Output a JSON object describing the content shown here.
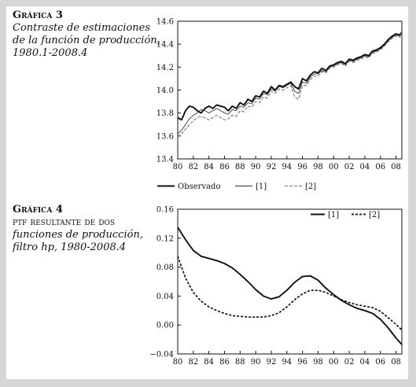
{
  "chart_data": [
    {
      "type": "line",
      "caption_number": "Gráfica 3",
      "title_lines": [
        "Contraste de estimaciones",
        "de la función de producción,",
        "1980.1-2008.4"
      ],
      "x_tick_labels": [
        "80",
        "82",
        "84",
        "86",
        "88",
        "90",
        "92",
        "94",
        "96",
        "98",
        "00",
        "02",
        "04",
        "06",
        "08"
      ],
      "x_range": [
        1980,
        2008.75
      ],
      "ylim": [
        13.4,
        14.6
      ],
      "y_ticks": [
        13.4,
        13.6,
        13.8,
        14.0,
        14.2,
        14.4,
        14.6
      ],
      "y_tick_labels": [
        "13.4",
        "13.6",
        "13.8",
        "14.0",
        "14.2",
        "14.4",
        "14.6"
      ],
      "legend_position": "bottom",
      "series": [
        {
          "name": "Observado",
          "style": "solid-thick",
          "color": "#111111",
          "x": [
            1980.0,
            1980.5,
            1981.0,
            1981.5,
            1982.0,
            1982.5,
            1983.0,
            1983.5,
            1984.0,
            1984.5,
            1985.0,
            1985.5,
            1986.0,
            1986.5,
            1987.0,
            1987.5,
            1988.0,
            1988.5,
            1989.0,
            1989.5,
            1990.0,
            1990.5,
            1991.0,
            1991.5,
            1992.0,
            1992.5,
            1993.0,
            1993.5,
            1994.0,
            1994.5,
            1995.0,
            1995.5,
            1996.0,
            1996.5,
            1997.0,
            1997.5,
            1998.0,
            1998.5,
            1999.0,
            1999.5,
            2000.0,
            2000.5,
            2001.0,
            2001.5,
            2002.0,
            2002.5,
            2003.0,
            2003.5,
            2004.0,
            2004.5,
            2005.0,
            2005.5,
            2006.0,
            2006.5,
            2007.0,
            2007.5,
            2008.0,
            2008.5,
            2008.75
          ],
          "y": [
            13.76,
            13.74,
            13.82,
            13.86,
            13.85,
            13.82,
            13.8,
            13.84,
            13.86,
            13.84,
            13.87,
            13.86,
            13.85,
            13.82,
            13.86,
            13.84,
            13.89,
            13.87,
            13.92,
            13.9,
            13.95,
            13.94,
            13.99,
            13.97,
            14.03,
            14.0,
            14.04,
            14.03,
            14.05,
            14.07,
            14.03,
            14.01,
            14.1,
            14.08,
            14.13,
            14.16,
            14.15,
            14.19,
            14.17,
            14.21,
            14.22,
            14.24,
            14.25,
            14.23,
            14.27,
            14.26,
            14.28,
            14.29,
            14.31,
            14.3,
            14.34,
            14.35,
            14.37,
            14.4,
            14.44,
            14.47,
            14.49,
            14.48,
            14.51
          ]
        },
        {
          "name": "[1]",
          "style": "solid-thin",
          "color": "#333333",
          "x": [
            1980.0,
            1980.5,
            1981.0,
            1981.5,
            1982.0,
            1982.5,
            1983.0,
            1983.5,
            1984.0,
            1984.5,
            1985.0,
            1985.5,
            1986.0,
            1986.5,
            1987.0,
            1987.5,
            1988.0,
            1988.5,
            1989.0,
            1989.5,
            1990.0,
            1990.5,
            1991.0,
            1991.5,
            1992.0,
            1992.5,
            1993.0,
            1993.5,
            1994.0,
            1994.5,
            1995.0,
            1995.5,
            1996.0,
            1996.5,
            1997.0,
            1997.5,
            1998.0,
            1998.5,
            1999.0,
            1999.5,
            2000.0,
            2000.5,
            2001.0,
            2001.5,
            2002.0,
            2002.5,
            2003.0,
            2003.5,
            2004.0,
            2004.5,
            2005.0,
            2005.5,
            2006.0,
            2006.5,
            2007.0,
            2007.5,
            2008.0,
            2008.5,
            2008.75
          ],
          "y": [
            13.62,
            13.65,
            13.7,
            13.75,
            13.78,
            13.8,
            13.83,
            13.82,
            13.8,
            13.82,
            13.84,
            13.82,
            13.8,
            13.79,
            13.83,
            13.82,
            13.86,
            13.85,
            13.89,
            13.88,
            13.93,
            13.92,
            13.97,
            13.96,
            14.01,
            13.99,
            14.03,
            14.02,
            14.04,
            14.06,
            13.99,
            13.97,
            14.07,
            14.06,
            14.11,
            14.14,
            14.14,
            14.17,
            14.16,
            14.2,
            14.21,
            14.23,
            14.24,
            14.22,
            14.26,
            14.25,
            14.27,
            14.28,
            14.3,
            14.29,
            14.33,
            14.34,
            14.36,
            14.39,
            14.43,
            14.46,
            14.48,
            14.47,
            14.5
          ]
        },
        {
          "name": "[2]",
          "style": "dashed-gray",
          "color": "#777777",
          "x": [
            1980.0,
            1980.5,
            1981.0,
            1981.5,
            1982.0,
            1982.5,
            1983.0,
            1983.5,
            1984.0,
            1984.5,
            1985.0,
            1985.5,
            1986.0,
            1986.5,
            1987.0,
            1987.5,
            1988.0,
            1988.5,
            1989.0,
            1989.5,
            1990.0,
            1990.5,
            1991.0,
            1991.5,
            1992.0,
            1992.5,
            1993.0,
            1993.5,
            1994.0,
            1994.5,
            1995.0,
            1995.5,
            1996.0,
            1996.5,
            1997.0,
            1997.5,
            1998.0,
            1998.5,
            1999.0,
            1999.5,
            2000.0,
            2000.5,
            2001.0,
            2001.5,
            2002.0,
            2002.5,
            2003.0,
            2003.5,
            2004.0,
            2004.5,
            2005.0,
            2005.5,
            2006.0,
            2006.5,
            2007.0,
            2007.5,
            2008.0,
            2008.5,
            2008.75
          ],
          "y": [
            13.59,
            13.62,
            13.66,
            13.7,
            13.73,
            13.76,
            13.77,
            13.76,
            13.74,
            13.76,
            13.78,
            13.76,
            13.74,
            13.75,
            13.78,
            13.77,
            13.82,
            13.81,
            13.86,
            13.85,
            13.9,
            13.89,
            13.94,
            13.93,
            13.99,
            13.97,
            14.01,
            14.0,
            14.02,
            14.04,
            13.94,
            13.92,
            14.04,
            14.04,
            14.09,
            14.12,
            14.12,
            14.16,
            14.15,
            14.19,
            14.2,
            14.22,
            14.23,
            14.21,
            14.25,
            14.24,
            14.26,
            14.27,
            14.29,
            14.28,
            14.32,
            14.33,
            14.35,
            14.38,
            14.42,
            14.45,
            14.47,
            14.46,
            14.52
          ]
        }
      ]
    },
    {
      "type": "line",
      "caption_number": "Gráfica 4",
      "title_lines": [
        "ptf resultante de dos",
        "funciones de producción,",
        "filtro hp, 1980-2008.4"
      ],
      "x_tick_labels": [
        "80",
        "82",
        "84",
        "86",
        "88",
        "90",
        "92",
        "94",
        "96",
        "98",
        "00",
        "02",
        "04",
        "06",
        "08"
      ],
      "x_range": [
        1980,
        2008.75
      ],
      "ylim": [
        -0.04,
        0.16
      ],
      "y_ticks": [
        -0.04,
        0.0,
        0.04,
        0.08,
        0.12,
        0.16
      ],
      "y_tick_labels": [
        "−0.04",
        "0.00",
        "0.04",
        "0.08",
        "0.12",
        "0.16"
      ],
      "legend_position": "top-right",
      "series": [
        {
          "name": "[1]",
          "style": "solid-thick",
          "color": "#111111",
          "x": [
            1980,
            1981,
            1982,
            1983,
            1984,
            1985,
            1986,
            1987,
            1988,
            1989,
            1990,
            1991,
            1992,
            1993,
            1994,
            1995,
            1996,
            1997,
            1998,
            1999,
            2000,
            2001,
            2002,
            2003,
            2004,
            2005,
            2006,
            2007,
            2008,
            2008.75
          ],
          "y": [
            0.135,
            0.118,
            0.103,
            0.095,
            0.092,
            0.089,
            0.085,
            0.079,
            0.07,
            0.06,
            0.049,
            0.04,
            0.036,
            0.039,
            0.048,
            0.059,
            0.067,
            0.068,
            0.062,
            0.051,
            0.042,
            0.034,
            0.028,
            0.023,
            0.02,
            0.016,
            0.008,
            -0.004,
            -0.018,
            -0.027
          ]
        },
        {
          "name": "[2]",
          "style": "dashed",
          "color": "#111111",
          "x": [
            1980,
            1981,
            1982,
            1983,
            1984,
            1985,
            1986,
            1987,
            1988,
            1989,
            1990,
            1991,
            1992,
            1993,
            1994,
            1995,
            1996,
            1997,
            1998,
            1999,
            2000,
            2001,
            2002,
            2003,
            2004,
            2005,
            2006,
            2007,
            2008,
            2008.75
          ],
          "y": [
            0.095,
            0.065,
            0.045,
            0.033,
            0.025,
            0.02,
            0.016,
            0.013,
            0.012,
            0.011,
            0.011,
            0.011,
            0.013,
            0.017,
            0.025,
            0.035,
            0.043,
            0.048,
            0.048,
            0.045,
            0.04,
            0.035,
            0.031,
            0.028,
            0.026,
            0.024,
            0.019,
            0.01,
            0.001,
            -0.007
          ]
        }
      ]
    }
  ]
}
